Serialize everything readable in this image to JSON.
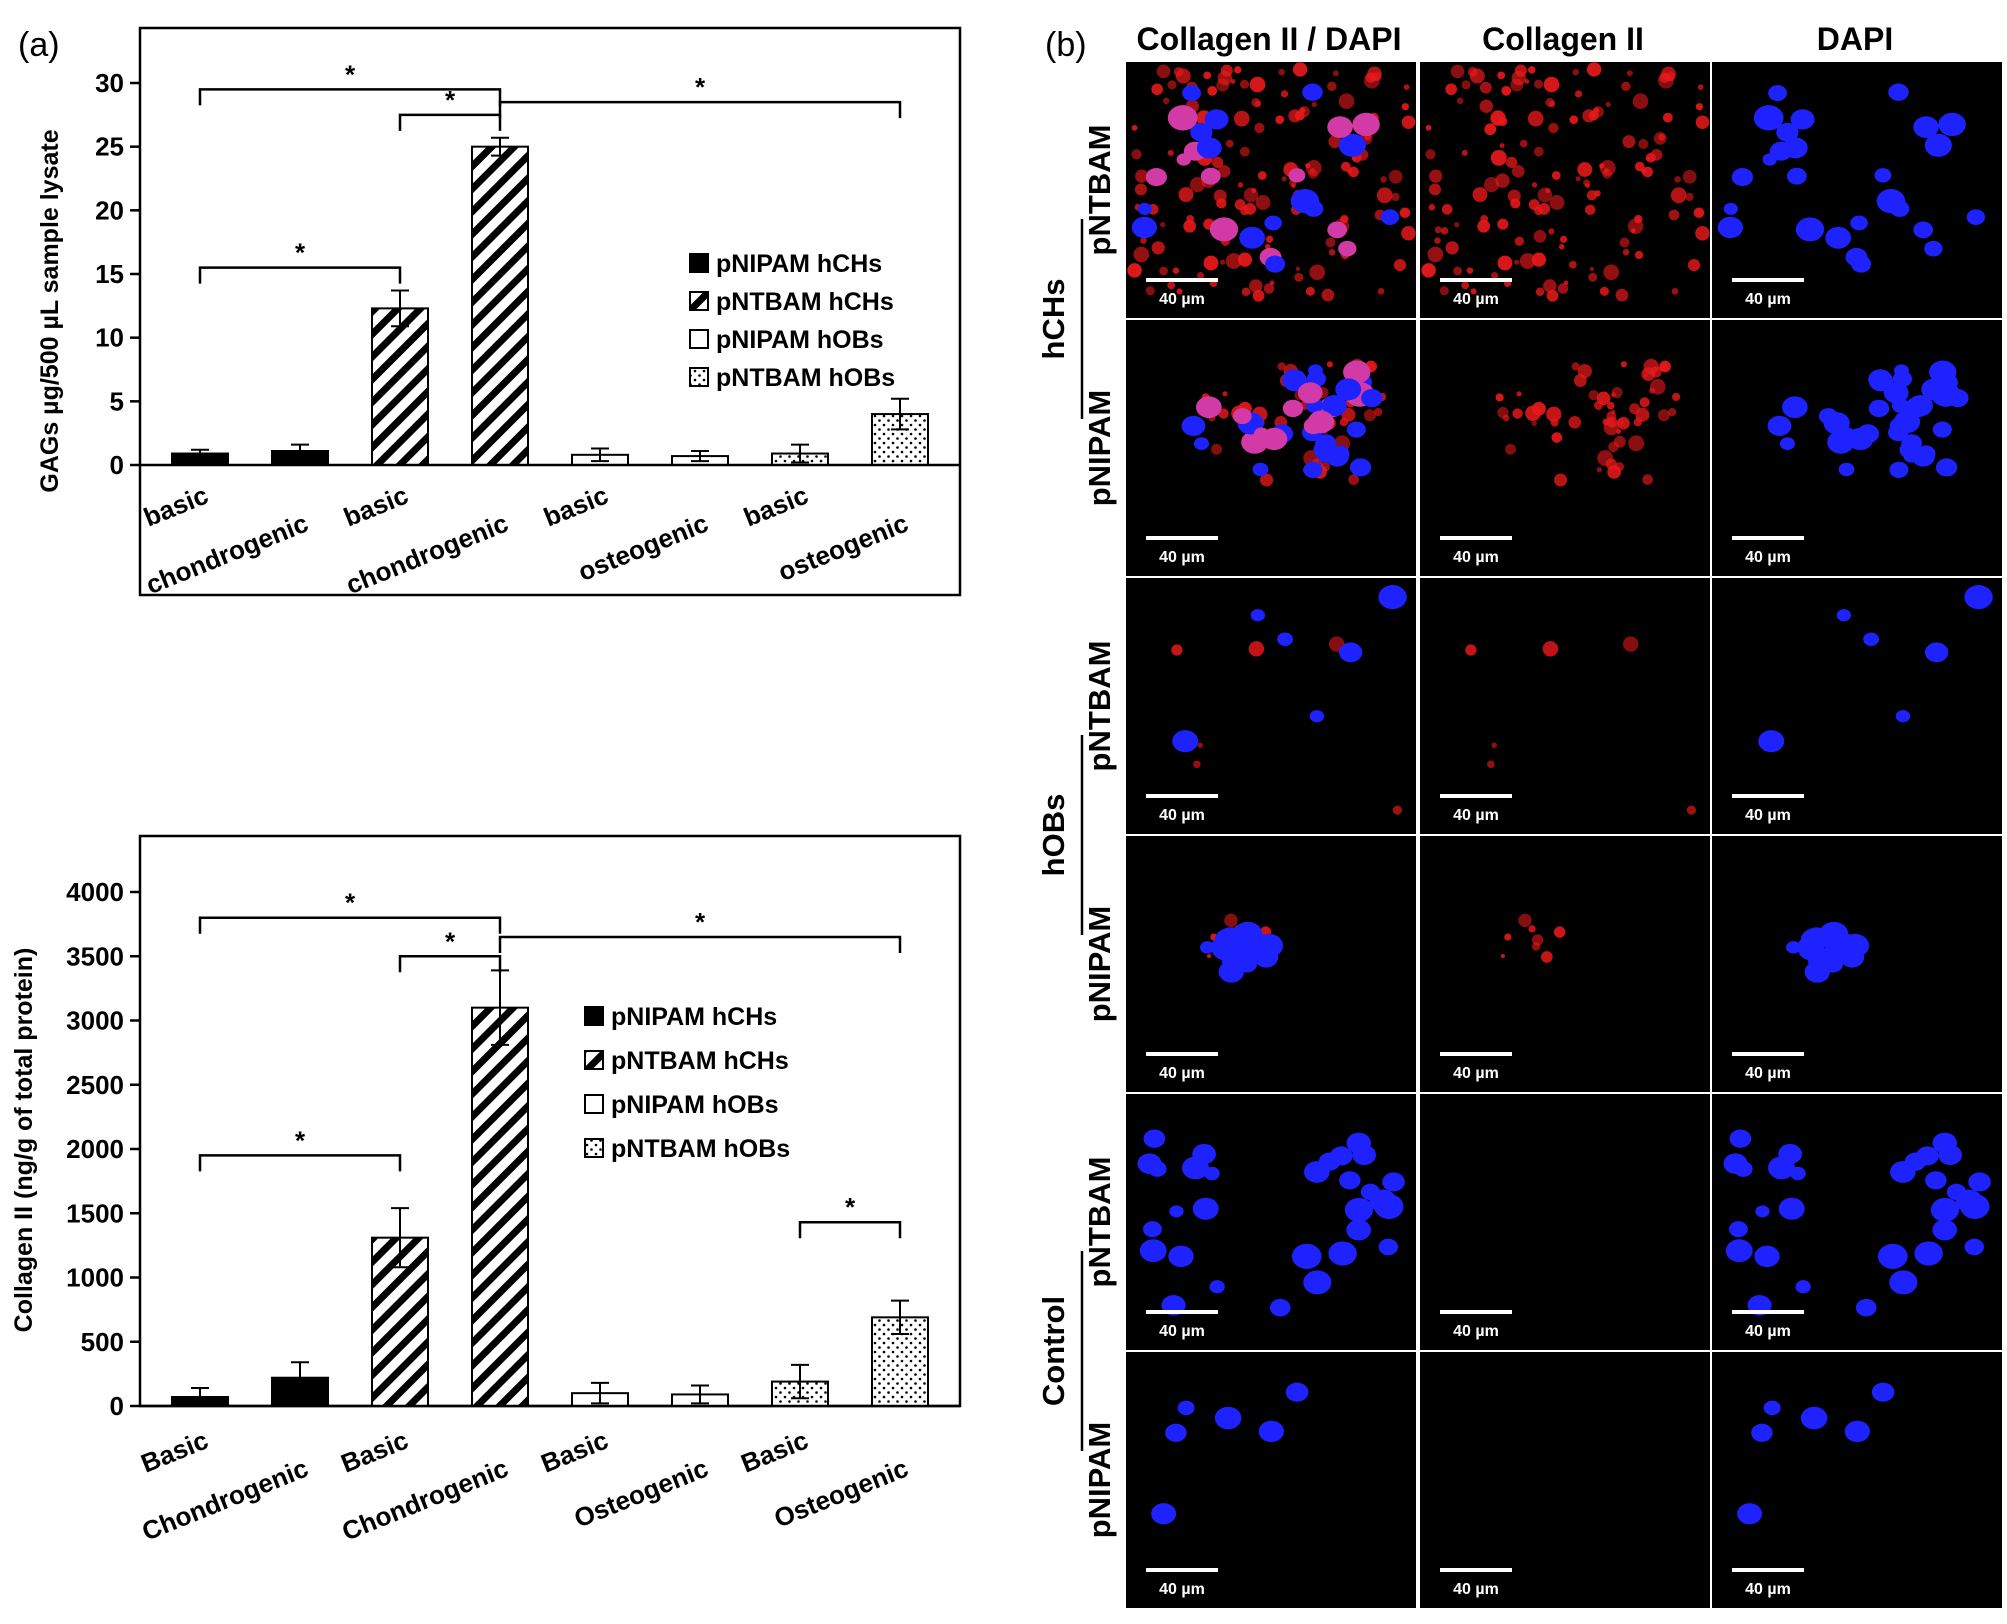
{
  "panel_a_label": "(a)",
  "panel_b_label": "(b)",
  "colors": {
    "black": "#000000",
    "blue": "#1e22ff",
    "red": "#e8191b",
    "magenta": "#d23aa6",
    "white": "#ffffff"
  },
  "chart_data": [
    {
      "type": "bar",
      "title": "",
      "xlabel": "",
      "ylabel": "GAGs  µg/500 µL sample lysate",
      "ylim": [
        0,
        30
      ],
      "yticks": [
        0,
        5,
        10,
        15,
        20,
        25,
        30
      ],
      "categories": [
        "basic",
        "chondrogenic",
        "basic",
        "chondrogenic",
        "basic",
        "osteogenic",
        "basic",
        "osteogenic"
      ],
      "values": [
        0.9,
        1.1,
        12.3,
        25.0,
        0.8,
        0.7,
        0.9,
        4.0
      ],
      "errors": [
        0.3,
        0.5,
        1.4,
        0.7,
        0.5,
        0.4,
        0.7,
        1.2
      ],
      "bar_series": [
        "pNIPAM hCHs",
        "pNIPAM hCHs",
        "pNTBAM hCHs",
        "pNTBAM hCHs",
        "pNIPAM hOBs",
        "pNIPAM hOBs",
        "pNTBAM hOBs",
        "pNTBAM hOBs"
      ],
      "series": [
        {
          "name": "pNIPAM hCHs",
          "pattern": "solid"
        },
        {
          "name": "pNTBAM hCHs",
          "pattern": "hatch"
        },
        {
          "name": "pNIPAM hOBs",
          "pattern": "open"
        },
        {
          "name": "pNTBAM hOBs",
          "pattern": "dots"
        }
      ],
      "legend_position": "right",
      "significance": [
        {
          "from": 0,
          "to": 3,
          "y": 29.5,
          "label": "*"
        },
        {
          "from": 2,
          "to": 3,
          "y": 27.5,
          "label": "*"
        },
        {
          "from": 3,
          "to": 7,
          "y": 28.5,
          "label": "*"
        },
        {
          "from": 0,
          "to": 2,
          "y": 15.5,
          "label": "*"
        }
      ]
    },
    {
      "type": "bar",
      "title": "",
      "xlabel": "",
      "ylabel": "Collagen II (ng/g of total protein)",
      "ylim": [
        0,
        4000
      ],
      "yticks": [
        0,
        500,
        1000,
        1500,
        2000,
        2500,
        3000,
        3500,
        4000
      ],
      "categories": [
        "Basic",
        "Chondrogenic",
        "Basic",
        "Chondrogenic",
        "Basic",
        "Osteogenic",
        "Basic",
        "Osteogenic"
      ],
      "values": [
        70,
        220,
        1310,
        3100,
        100,
        90,
        190,
        690
      ],
      "errors": [
        70,
        120,
        230,
        290,
        80,
        70,
        130,
        130
      ],
      "bar_series": [
        "pNIPAM hCHs",
        "pNIPAM hCHs",
        "pNTBAM hCHs",
        "pNTBAM hCHs",
        "pNIPAM hOBs",
        "pNIPAM hOBs",
        "pNTBAM hOBs",
        "pNTBAM hOBs"
      ],
      "series": [
        {
          "name": "pNIPAM hCHs",
          "pattern": "solid"
        },
        {
          "name": "pNTBAM hCHs",
          "pattern": "hatch"
        },
        {
          "name": "pNIPAM hOBs",
          "pattern": "open"
        },
        {
          "name": "pNTBAM hOBs",
          "pattern": "dots"
        }
      ],
      "legend_position": "right",
      "significance": [
        {
          "from": 0,
          "to": 3,
          "y": 3800,
          "label": "*"
        },
        {
          "from": 2,
          "to": 3,
          "y": 3500,
          "label": "*"
        },
        {
          "from": 3,
          "to": 7,
          "y": 3650,
          "label": "*"
        },
        {
          "from": 0,
          "to": 2,
          "y": 1950,
          "label": "*"
        },
        {
          "from": 6,
          "to": 7,
          "y": 1430,
          "label": "*"
        }
      ]
    }
  ],
  "microscopy": {
    "columns": [
      "Collagen II / DAPI",
      "Collagen II",
      "DAPI"
    ],
    "groups": [
      {
        "label": "hCHs",
        "rows": [
          "pNTBAM",
          "pNIPAM"
        ]
      },
      {
        "label": "hOBs",
        "rows": [
          "pNTBAM",
          "pNIPAM"
        ]
      },
      {
        "label": "Control",
        "rows": [
          "pNTBAM",
          "pNIPAM"
        ]
      }
    ],
    "scale_bar_label": "40 µm"
  }
}
